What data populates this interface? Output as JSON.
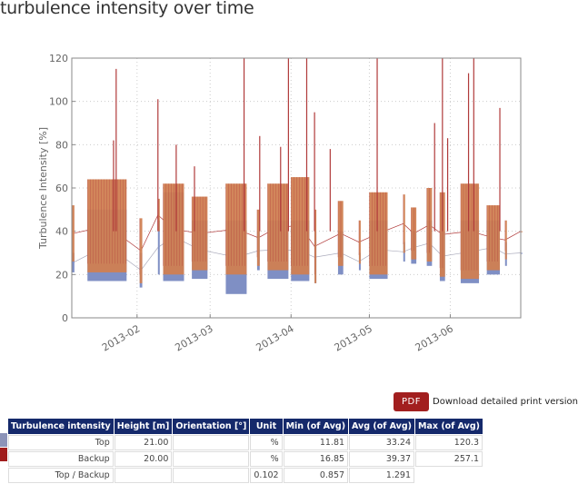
{
  "title": "turbulence intensity over time",
  "download": {
    "button": "PDF",
    "label": "Download detailed print version"
  },
  "chart_data": {
    "type": "line",
    "ylabel": "Turbulence Intensity [%]",
    "xlabel": "",
    "ylim": [
      0,
      120
    ],
    "xlim": [
      "2013-01-07",
      "2013-06-28"
    ],
    "yticks": [
      "0",
      "20",
      "40",
      "60",
      "80",
      "100",
      "120"
    ],
    "xticks": [
      {
        "date": "2013-02-01",
        "label": "2013-02"
      },
      {
        "date": "2013-03-01",
        "label": "2013-03"
      },
      {
        "date": "2013-04-01",
        "label": "2013-04"
      },
      {
        "date": "2013-05-01",
        "label": "2013-05"
      },
      {
        "date": "2013-06-01",
        "label": "2013-06"
      }
    ],
    "grid": true,
    "colors": {
      "top": "#7f8fc4",
      "backup": "#d07f52",
      "backup_line": "#b03a3a"
    },
    "series_note_values": "approximate ranges per measurement period (dense 10-min data)",
    "periods": [
      {
        "start": "2013-01-07",
        "end": "2013-01-08",
        "top": [
          21,
          30
        ],
        "backup": [
          26,
          52
        ]
      },
      {
        "start": "2013-01-13",
        "end": "2013-01-28",
        "top": [
          17,
          50
        ],
        "backup": [
          21,
          64
        ]
      },
      {
        "start": "2013-02-02",
        "end": "2013-02-03",
        "top": [
          14,
          30
        ],
        "backup": [
          16,
          46
        ]
      },
      {
        "start": "2013-02-09",
        "end": "2013-02-09",
        "top": [
          20,
          45
        ],
        "backup": [
          40,
          55
        ]
      },
      {
        "start": "2013-02-11",
        "end": "2013-02-19",
        "top": [
          17,
          58
        ],
        "backup": [
          20,
          62
        ]
      },
      {
        "start": "2013-02-22",
        "end": "2013-02-28",
        "top": [
          18,
          45
        ],
        "backup": [
          22,
          56
        ]
      },
      {
        "start": "2013-03-07",
        "end": "2013-03-15",
        "top": [
          11,
          45
        ],
        "backup": [
          20,
          62
        ]
      },
      {
        "start": "2013-03-19",
        "end": "2013-03-20",
        "top": [
          22,
          40
        ],
        "backup": [
          24,
          50
        ]
      },
      {
        "start": "2013-03-23",
        "end": "2013-03-31",
        "top": [
          18,
          45
        ],
        "backup": [
          22,
          62
        ]
      },
      {
        "start": "2013-04-01",
        "end": "2013-04-08",
        "top": [
          17,
          45
        ],
        "backup": [
          20,
          65
        ]
      },
      {
        "start": "2013-04-10",
        "end": "2013-04-10",
        "top": [
          16,
          40
        ],
        "backup": [
          16,
          50
        ]
      },
      {
        "start": "2013-04-19",
        "end": "2013-04-21",
        "top": [
          20,
          40
        ],
        "backup": [
          24,
          54
        ]
      },
      {
        "start": "2013-04-27",
        "end": "2013-04-27",
        "top": [
          22,
          30
        ],
        "backup": [
          25,
          45
        ]
      },
      {
        "start": "2013-05-01",
        "end": "2013-05-08",
        "top": [
          18,
          45
        ],
        "backup": [
          20,
          58
        ]
      },
      {
        "start": "2013-05-14",
        "end": "2013-05-14",
        "top": [
          26,
          35
        ],
        "backup": [
          30,
          57
        ]
      },
      {
        "start": "2013-05-17",
        "end": "2013-05-19",
        "top": [
          25,
          40
        ],
        "backup": [
          27,
          51
        ]
      },
      {
        "start": "2013-05-23",
        "end": "2013-05-25",
        "top": [
          24,
          45
        ],
        "backup": [
          26,
          60
        ]
      },
      {
        "start": "2013-05-28",
        "end": "2013-05-30",
        "top": [
          17,
          40
        ],
        "backup": [
          19,
          58
        ]
      },
      {
        "start": "2013-06-05",
        "end": "2013-06-12",
        "top": [
          16,
          45
        ],
        "backup": [
          18,
          62
        ]
      },
      {
        "start": "2013-06-15",
        "end": "2013-06-20",
        "top": [
          20,
          45
        ],
        "backup": [
          22,
          52
        ]
      },
      {
        "start": "2013-06-22",
        "end": "2013-06-22",
        "top": [
          24,
          35
        ],
        "backup": [
          27,
          45
        ]
      },
      {
        "start": "2013-06-28",
        "end": "2013-06-28",
        "top": [
          30,
          30
        ],
        "backup": [
          40,
          40
        ]
      }
    ],
    "spikes_backup": [
      {
        "date": "2013-01-23",
        "value": 82
      },
      {
        "date": "2013-01-24",
        "value": 115
      },
      {
        "date": "2013-02-09",
        "value": 101
      },
      {
        "date": "2013-02-16",
        "value": 80
      },
      {
        "date": "2013-02-23",
        "value": 70
      },
      {
        "date": "2013-03-14",
        "value": 120
      },
      {
        "date": "2013-03-20",
        "value": 84
      },
      {
        "date": "2013-03-28",
        "value": 79
      },
      {
        "date": "2013-03-31",
        "value": 120
      },
      {
        "date": "2013-04-07",
        "value": 120
      },
      {
        "date": "2013-04-10",
        "value": 95
      },
      {
        "date": "2013-04-16",
        "value": 78
      },
      {
        "date": "2013-05-04",
        "value": 120
      },
      {
        "date": "2013-05-26",
        "value": 90
      },
      {
        "date": "2013-05-29",
        "value": 120
      },
      {
        "date": "2013-05-31",
        "value": 83
      },
      {
        "date": "2013-06-08",
        "value": 113
      },
      {
        "date": "2013-06-10",
        "value": 120
      },
      {
        "date": "2013-06-20",
        "value": 97
      }
    ]
  },
  "table": {
    "headers": [
      "Turbulence intensity",
      "Height [m]",
      "Orientation [°]",
      "Unit",
      "Min (of Avg)",
      "Avg (of Avg)",
      "Max (of Avg)"
    ],
    "rows": [
      {
        "color": "#8c93b8",
        "cells": [
          "Top",
          "21.00",
          "",
          "%",
          "11.81",
          "33.24",
          "120.3"
        ]
      },
      {
        "color": "#a01c1c",
        "cells": [
          "Backup",
          "20.00",
          "",
          "%",
          "16.85",
          "39.37",
          "257.1"
        ]
      },
      {
        "color": "",
        "cells": [
          "Top / Backup",
          "",
          "",
          "0.102",
          "0.857",
          "1.291",
          ""
        ]
      }
    ]
  }
}
